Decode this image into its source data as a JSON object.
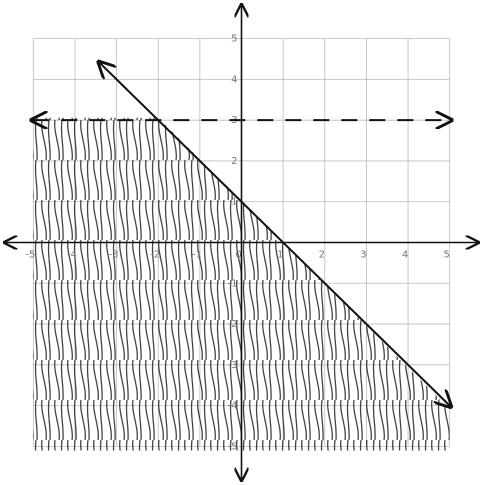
{
  "chart_data": {
    "type": "line",
    "xlim": [
      -5.8,
      5.8
    ],
    "ylim": [
      -5.8,
      5.8
    ],
    "xticks": [
      -5,
      -4,
      -3,
      -2,
      -1,
      0,
      1,
      2,
      3,
      4,
      5
    ],
    "yticks": [
      -5,
      -4,
      -3,
      -2,
      -1,
      1,
      2,
      3,
      4,
      5
    ],
    "grid": true,
    "series": [
      {
        "color": "#111111",
        "style": "solid",
        "x": [
          -3.4,
          5
        ],
        "values": [
          4.4,
          -4
        ]
      },
      {
        "color": "#111111",
        "style": "dashed",
        "x": [
          -5,
          5
        ],
        "values": [
          3,
          3
        ]
      }
    ]
  }
}
